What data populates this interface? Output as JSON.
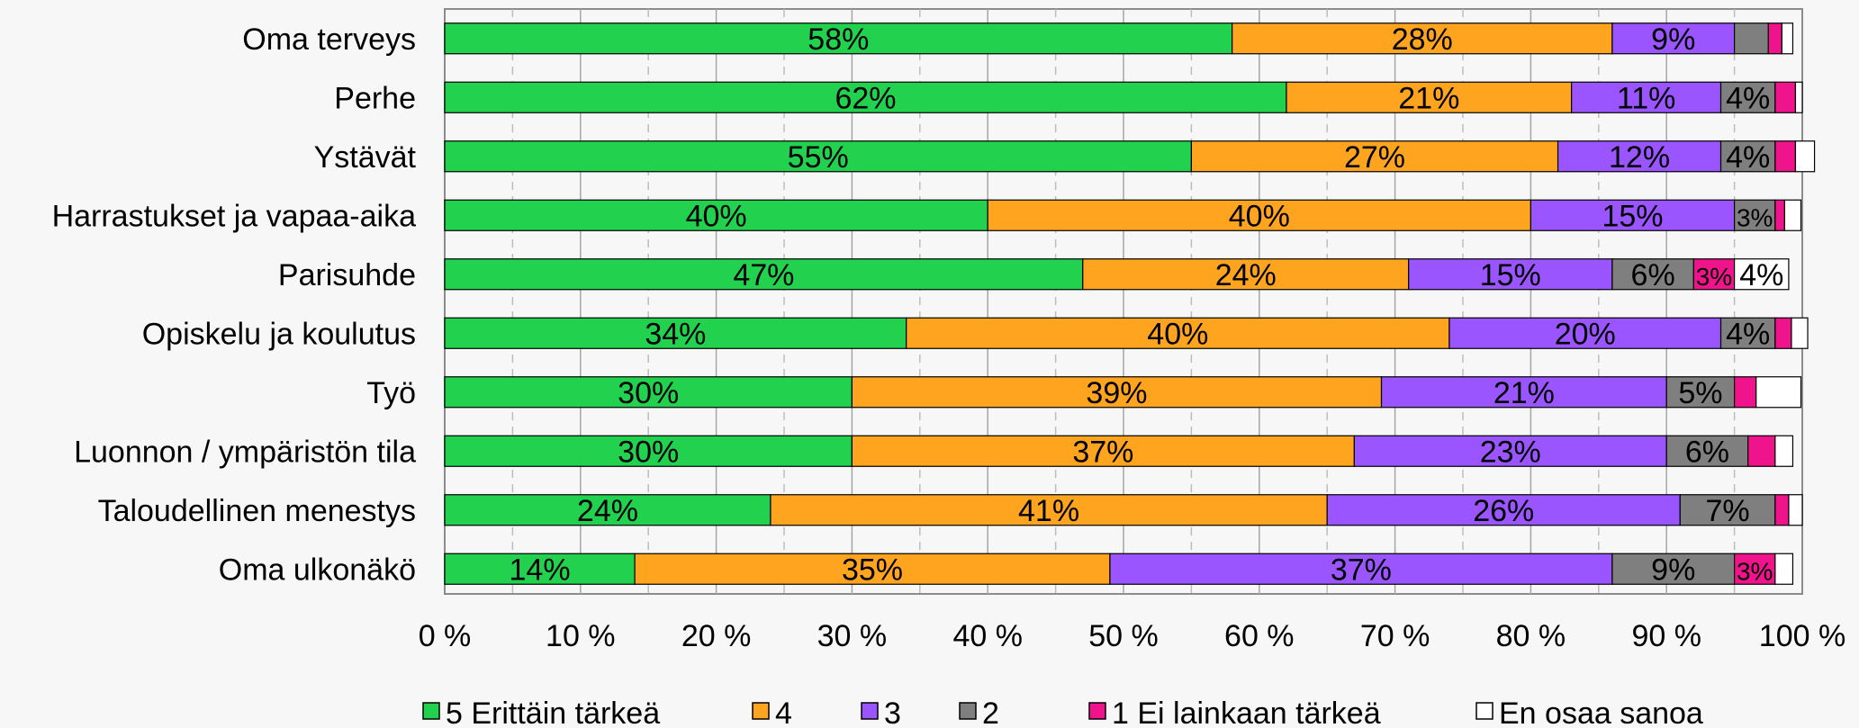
{
  "chart_data": {
    "type": "bar",
    "orientation": "horizontal",
    "stacked": true,
    "normalized": true,
    "categories": [
      "Oma terveys",
      "Perhe",
      "Ystävät",
      "Harrastukset ja vapaa-aika",
      "Parisuhde",
      "Opiskelu ja koulutus",
      "Työ",
      "Luonnon / ympäristön tila",
      "Taloudellinen menestys",
      "Oma ulkonäkö"
    ],
    "series": [
      {
        "name": "5 Erittäin tärkeä",
        "color": "#22d24f",
        "values": [
          58,
          62,
          55,
          40,
          47,
          34,
          30,
          30,
          24,
          14
        ],
        "labels": [
          "58%",
          "62%",
          "55%",
          "40%",
          "47%",
          "34%",
          "30%",
          "30%",
          "24%",
          "14%"
        ]
      },
      {
        "name": "4",
        "color": "#ffa41f",
        "values": [
          28,
          21,
          27,
          40,
          24,
          40,
          39,
          37,
          41,
          35
        ],
        "labels": [
          "28%",
          "21%",
          "27%",
          "40%",
          "24%",
          "40%",
          "39%",
          "37%",
          "41%",
          "35%"
        ]
      },
      {
        "name": "3",
        "color": "#9a55ff",
        "values": [
          9,
          11,
          12,
          15,
          15,
          20,
          21,
          23,
          26,
          37
        ],
        "labels": [
          "9%",
          "11%",
          "12%",
          "15%",
          "15%",
          "20%",
          "21%",
          "23%",
          "26%",
          "37%"
        ]
      },
      {
        "name": "2",
        "color": "#7f7f7f",
        "values": [
          2.5,
          4,
          4,
          3,
          6,
          4,
          5,
          6,
          7,
          9
        ],
        "labels": [
          "",
          "4%",
          "4%",
          "3%",
          "6%",
          "4%",
          "5%",
          "6%",
          "7%",
          "9%"
        ]
      },
      {
        "name": "1 Ei lainkaan tärkeä",
        "color": "#f0148c",
        "values": [
          1,
          1.5,
          1.5,
          0.7,
          3,
          1.2,
          1.6,
          2,
          1,
          3
        ],
        "labels": [
          "",
          "",
          "",
          "",
          "3%",
          "",
          "",
          "",
          "",
          "3%"
        ]
      },
      {
        "name": "En osaa sanoa",
        "color": "#ffffff",
        "values": [
          0.8,
          0.5,
          1.4,
          1.2,
          4,
          1.2,
          3.3,
          1.3,
          1,
          1.3
        ],
        "labels": [
          "",
          "",
          "",
          "",
          "4%",
          "",
          "",
          "",
          "",
          ""
        ]
      }
    ],
    "x_ticks": [
      "0 %",
      "10 %",
      "20 %",
      "30 %",
      "40 %",
      "50 %",
      "60 %",
      "70 %",
      "80 %",
      "90 %",
      "100 %"
    ],
    "xlim": [
      0,
      100
    ],
    "grid": "vertical",
    "legend_position": "bottom"
  }
}
